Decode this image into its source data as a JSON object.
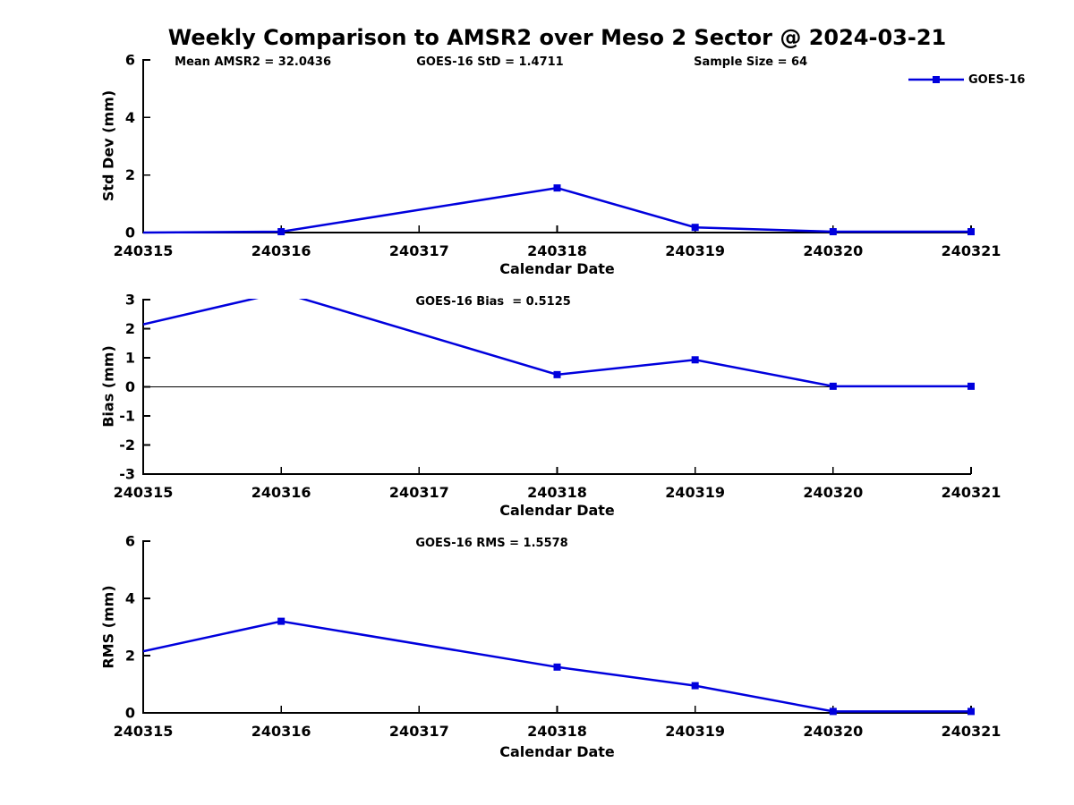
{
  "figure": {
    "title": "Weekly Comparison to AMSR2 over Meso 2 Sector @ 2024-03-21",
    "background_color": "#ffffff",
    "axis_color": "#000000",
    "line_color": "#0000dd"
  },
  "legend": {
    "label": "GOES-16",
    "series_color": "#0000dd",
    "marker": "square-icon",
    "position": "northeast"
  },
  "chart_data": [
    {
      "type": "line",
      "panel": "std-dev",
      "annotations": [
        "Mean AMSR2 = 32.0436",
        "GOES-16 StD = 1.4711",
        "Sample Size = 64"
      ],
      "xlabel": "Calendar Date",
      "ylabel": "Std Dev (mm)",
      "xlim": [
        0,
        6
      ],
      "ylim": [
        0,
        6
      ],
      "yticks": [
        0,
        2,
        4,
        6
      ],
      "xticks": [
        0,
        1,
        2,
        3,
        4,
        5,
        6
      ],
      "xticklabels": [
        "240315",
        "240316",
        "240317",
        "240318",
        "240319",
        "240320",
        "240321"
      ],
      "zero_line_at": null,
      "grid": false,
      "series": [
        {
          "name": "GOES-16",
          "x_dates": [
            "240315",
            "240316",
            "240318",
            "240319",
            "240320",
            "240321"
          ],
          "x": [
            0,
            1,
            3,
            4,
            5,
            6
          ],
          "values": [
            0.0,
            0.03,
            1.55,
            0.18,
            0.03,
            0.03
          ],
          "markers": [
            false,
            true,
            true,
            true,
            true,
            true
          ]
        }
      ]
    },
    {
      "type": "line",
      "panel": "bias",
      "annotations": [
        "GOES-16 Bias  = 0.5125"
      ],
      "xlabel": "Calendar Date",
      "ylabel": "Bias (mm)",
      "xlim": [
        0,
        6
      ],
      "ylim": [
        -3,
        3
      ],
      "yticks": [
        -3,
        -2,
        -1,
        0,
        1,
        2,
        3
      ],
      "xticks": [
        0,
        1,
        2,
        3,
        4,
        5,
        6
      ],
      "xticklabels": [
        "240315",
        "240316",
        "240317",
        "240318",
        "240319",
        "240320",
        "240321"
      ],
      "zero_line_at": 0,
      "grid": false,
      "series": [
        {
          "name": "GOES-16",
          "x_dates": [
            "240315",
            "240316",
            "240318",
            "240319",
            "240320",
            "240321"
          ],
          "x": [
            0,
            1,
            3,
            4,
            5,
            6
          ],
          "values": [
            2.15,
            3.25,
            0.42,
            0.93,
            0.02,
            0.02
          ],
          "markers": [
            false,
            true,
            true,
            true,
            true,
            true
          ]
        }
      ]
    },
    {
      "type": "line",
      "panel": "rms",
      "annotations": [
        "GOES-16 RMS = 1.5578"
      ],
      "xlabel": "Calendar Date",
      "ylabel": "RMS (mm)",
      "xlim": [
        0,
        6
      ],
      "ylim": [
        0,
        6
      ],
      "yticks": [
        0,
        2,
        4,
        6
      ],
      "xticks": [
        0,
        1,
        2,
        3,
        4,
        5,
        6
      ],
      "xticklabels": [
        "240315",
        "240316",
        "240317",
        "240318",
        "240319",
        "240320",
        "240321"
      ],
      "zero_line_at": null,
      "grid": false,
      "series": [
        {
          "name": "GOES-16",
          "x_dates": [
            "240315",
            "240316",
            "240318",
            "240319",
            "240320",
            "240321"
          ],
          "x": [
            0,
            1,
            3,
            4,
            5,
            6
          ],
          "values": [
            2.15,
            3.2,
            1.6,
            0.95,
            0.05,
            0.05
          ],
          "markers": [
            false,
            true,
            true,
            true,
            true,
            true
          ]
        }
      ]
    }
  ]
}
